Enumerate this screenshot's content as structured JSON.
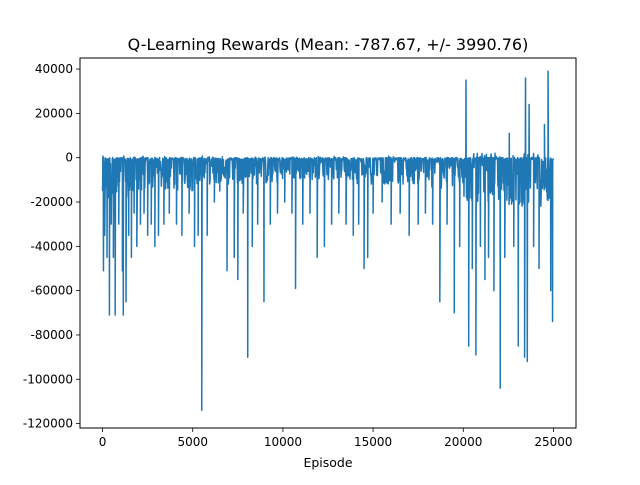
{
  "chart_data": {
    "type": "line",
    "title": "Q-Learning Rewards (Mean: -787.67, +/- 3990.76)",
    "xlabel": "Episode",
    "ylabel": "",
    "xlim": [
      -1250,
      26250
    ],
    "ylim": [
      -122000,
      45000
    ],
    "xticks": [
      0,
      5000,
      10000,
      15000,
      20000,
      25000
    ],
    "yticks": [
      -120000,
      -100000,
      -80000,
      -60000,
      -40000,
      -20000,
      0,
      20000,
      40000
    ],
    "grid": false,
    "legend": "none",
    "episodes_total": 25000,
    "baseline": -500,
    "series_color": "#1f77b4",
    "band_segments": [
      {
        "x0": 0,
        "x1": 2000,
        "lo": -22000,
        "hi": 800
      },
      {
        "x0": 2000,
        "x1": 5000,
        "lo": -15000,
        "hi": 800
      },
      {
        "x0": 5000,
        "x1": 7000,
        "lo": -12000,
        "hi": 800
      },
      {
        "x0": 7000,
        "x1": 10000,
        "lo": -12000,
        "hi": 800
      },
      {
        "x0": 10000,
        "x1": 14000,
        "lo": -10000,
        "hi": 800
      },
      {
        "x0": 14000,
        "x1": 18000,
        "lo": -12000,
        "hi": 800
      },
      {
        "x0": 18000,
        "x1": 20000,
        "lo": -14000,
        "hi": 800
      },
      {
        "x0": 20000,
        "x1": 22000,
        "lo": -20000,
        "hi": 2000
      },
      {
        "x0": 22000,
        "x1": 25000,
        "lo": -22000,
        "hi": 2000
      }
    ],
    "spikes": [
      {
        "x": 50,
        "y": -51000
      },
      {
        "x": 120,
        "y": -35000
      },
      {
        "x": 250,
        "y": -45000
      },
      {
        "x": 380,
        "y": -71000
      },
      {
        "x": 480,
        "y": -30000
      },
      {
        "x": 600,
        "y": -45000
      },
      {
        "x": 700,
        "y": -71000
      },
      {
        "x": 900,
        "y": -30000
      },
      {
        "x": 1100,
        "y": -51000
      },
      {
        "x": 1150,
        "y": -71000
      },
      {
        "x": 1300,
        "y": -65000
      },
      {
        "x": 1450,
        "y": -35000
      },
      {
        "x": 1600,
        "y": -45000
      },
      {
        "x": 1750,
        "y": -25000
      },
      {
        "x": 1900,
        "y": -40000
      },
      {
        "x": 2100,
        "y": -30000
      },
      {
        "x": 2300,
        "y": -25000
      },
      {
        "x": 2500,
        "y": -35000
      },
      {
        "x": 2700,
        "y": -30000
      },
      {
        "x": 2900,
        "y": -40000
      },
      {
        "x": 3100,
        "y": -35000
      },
      {
        "x": 3400,
        "y": -30000
      },
      {
        "x": 3700,
        "y": -25000
      },
      {
        "x": 4100,
        "y": -30000
      },
      {
        "x": 4400,
        "y": -35000
      },
      {
        "x": 4800,
        "y": -25000
      },
      {
        "x": 5100,
        "y": -40000
      },
      {
        "x": 5300,
        "y": -35000
      },
      {
        "x": 5500,
        "y": -114000
      },
      {
        "x": 5800,
        "y": -35000
      },
      {
        "x": 6200,
        "y": -20000
      },
      {
        "x": 6500,
        "y": -15000
      },
      {
        "x": 6900,
        "y": -51000
      },
      {
        "x": 7300,
        "y": -45000
      },
      {
        "x": 7500,
        "y": -55000
      },
      {
        "x": 7800,
        "y": -25000
      },
      {
        "x": 8050,
        "y": -90000
      },
      {
        "x": 8300,
        "y": -40000
      },
      {
        "x": 8600,
        "y": -30000
      },
      {
        "x": 8950,
        "y": -65000
      },
      {
        "x": 9300,
        "y": -30000
      },
      {
        "x": 9700,
        "y": -25000
      },
      {
        "x": 10100,
        "y": -20000
      },
      {
        "x": 10500,
        "y": -25000
      },
      {
        "x": 10700,
        "y": -59000
      },
      {
        "x": 11100,
        "y": -30000
      },
      {
        "x": 11500,
        "y": -25000
      },
      {
        "x": 11900,
        "y": -45000
      },
      {
        "x": 12300,
        "y": -40000
      },
      {
        "x": 12700,
        "y": -30000
      },
      {
        "x": 13100,
        "y": -25000
      },
      {
        "x": 13500,
        "y": -30000
      },
      {
        "x": 13900,
        "y": -35000
      },
      {
        "x": 14200,
        "y": -30000
      },
      {
        "x": 14500,
        "y": -50000
      },
      {
        "x": 14700,
        "y": -45000
      },
      {
        "x": 15000,
        "y": -25000
      },
      {
        "x": 15500,
        "y": -20000
      },
      {
        "x": 16000,
        "y": -30000
      },
      {
        "x": 16500,
        "y": -25000
      },
      {
        "x": 17000,
        "y": -35000
      },
      {
        "x": 17500,
        "y": -30000
      },
      {
        "x": 17900,
        "y": -25000
      },
      {
        "x": 18300,
        "y": -30000
      },
      {
        "x": 18700,
        "y": -65000
      },
      {
        "x": 19100,
        "y": -30000
      },
      {
        "x": 19500,
        "y": -70000
      },
      {
        "x": 19800,
        "y": -40000
      },
      {
        "x": 20150,
        "y": 35000
      },
      {
        "x": 20300,
        "y": -85000
      },
      {
        "x": 20500,
        "y": -50000
      },
      {
        "x": 20700,
        "y": -89000
      },
      {
        "x": 20950,
        "y": -40000
      },
      {
        "x": 21200,
        "y": -55000
      },
      {
        "x": 21400,
        "y": -45000
      },
      {
        "x": 21700,
        "y": -60000
      },
      {
        "x": 22050,
        "y": -104000
      },
      {
        "x": 22300,
        "y": -45000
      },
      {
        "x": 22550,
        "y": 11000
      },
      {
        "x": 22800,
        "y": -40000
      },
      {
        "x": 23050,
        "y": -85000
      },
      {
        "x": 23200,
        "y": -20000
      },
      {
        "x": 23400,
        "y": -90000
      },
      {
        "x": 23450,
        "y": 36000
      },
      {
        "x": 23550,
        "y": -92000
      },
      {
        "x": 23650,
        "y": 24000
      },
      {
        "x": 23900,
        "y": -40000
      },
      {
        "x": 24200,
        "y": -50000
      },
      {
        "x": 24500,
        "y": 15000
      },
      {
        "x": 24700,
        "y": 39000
      },
      {
        "x": 24850,
        "y": -60000
      },
      {
        "x": 24950,
        "y": -74000
      }
    ]
  }
}
